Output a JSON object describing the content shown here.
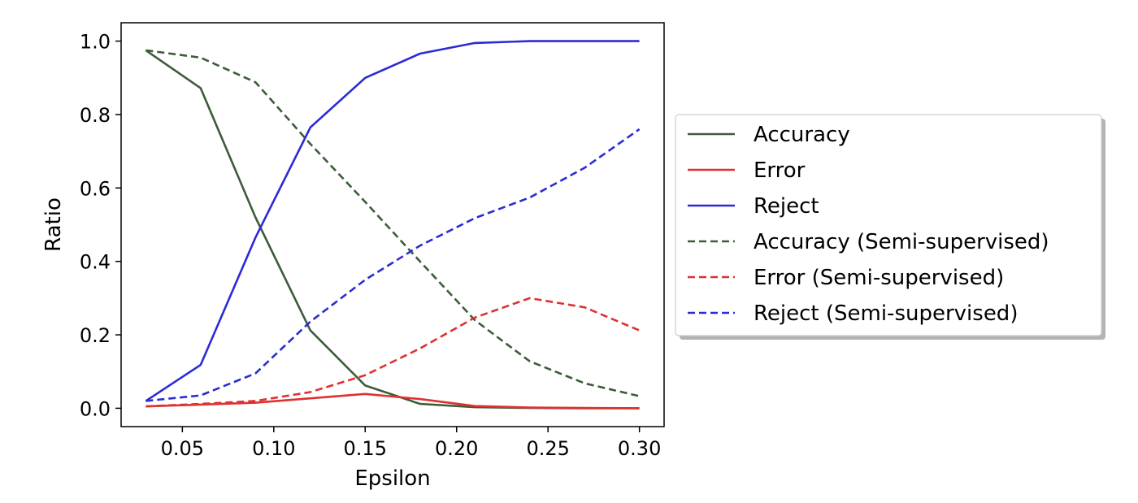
{
  "chart_data": {
    "type": "line",
    "title": "",
    "xlabel": "Epsilon",
    "ylabel": "Ratio",
    "xlim": [
      0.0165,
      0.3135
    ],
    "ylim": [
      -0.05,
      1.05
    ],
    "xticks": [
      "0.05",
      "0.10",
      "0.15",
      "0.20",
      "0.25",
      "0.30"
    ],
    "yticks": [
      "0.0",
      "0.2",
      "0.4",
      "0.6",
      "0.8",
      "1.0"
    ],
    "grid": false,
    "legend_position": "outside-right",
    "x": [
      0.03,
      0.06,
      0.09,
      0.12,
      0.15,
      0.18,
      0.21,
      0.24,
      0.27,
      0.3
    ],
    "series": [
      {
        "name": "Accuracy",
        "color": "#3d5c3a",
        "dashed": false,
        "values": [
          0.975,
          0.872,
          0.52,
          0.212,
          0.062,
          0.012,
          0.003,
          0.001,
          0.0,
          0.0
        ]
      },
      {
        "name": "Error",
        "color": "#e03030",
        "dashed": false,
        "values": [
          0.005,
          0.01,
          0.015,
          0.027,
          0.039,
          0.025,
          0.006,
          0.002,
          0.001,
          0.0
        ]
      },
      {
        "name": "Reject",
        "color": "#2b2bd6",
        "dashed": false,
        "values": [
          0.02,
          0.118,
          0.465,
          0.765,
          0.9,
          0.966,
          0.995,
          1.0,
          1.0,
          1.0
        ]
      },
      {
        "name": "Accuracy (Semi-supervised)",
        "color": "#3d5c3a",
        "dashed": true,
        "values": [
          0.975,
          0.955,
          0.888,
          0.72,
          0.562,
          0.4,
          0.24,
          0.128,
          0.068,
          0.033
        ]
      },
      {
        "name": "Error (Semi-supervised)",
        "color": "#e03030",
        "dashed": true,
        "values": [
          0.005,
          0.012,
          0.02,
          0.044,
          0.09,
          0.163,
          0.247,
          0.3,
          0.275,
          0.212
        ]
      },
      {
        "name": "Reject (Semi-supervised)",
        "color": "#2b2bd6",
        "dashed": true,
        "values": [
          0.02,
          0.035,
          0.095,
          0.236,
          0.35,
          0.443,
          0.518,
          0.574,
          0.655,
          0.76
        ]
      }
    ]
  }
}
